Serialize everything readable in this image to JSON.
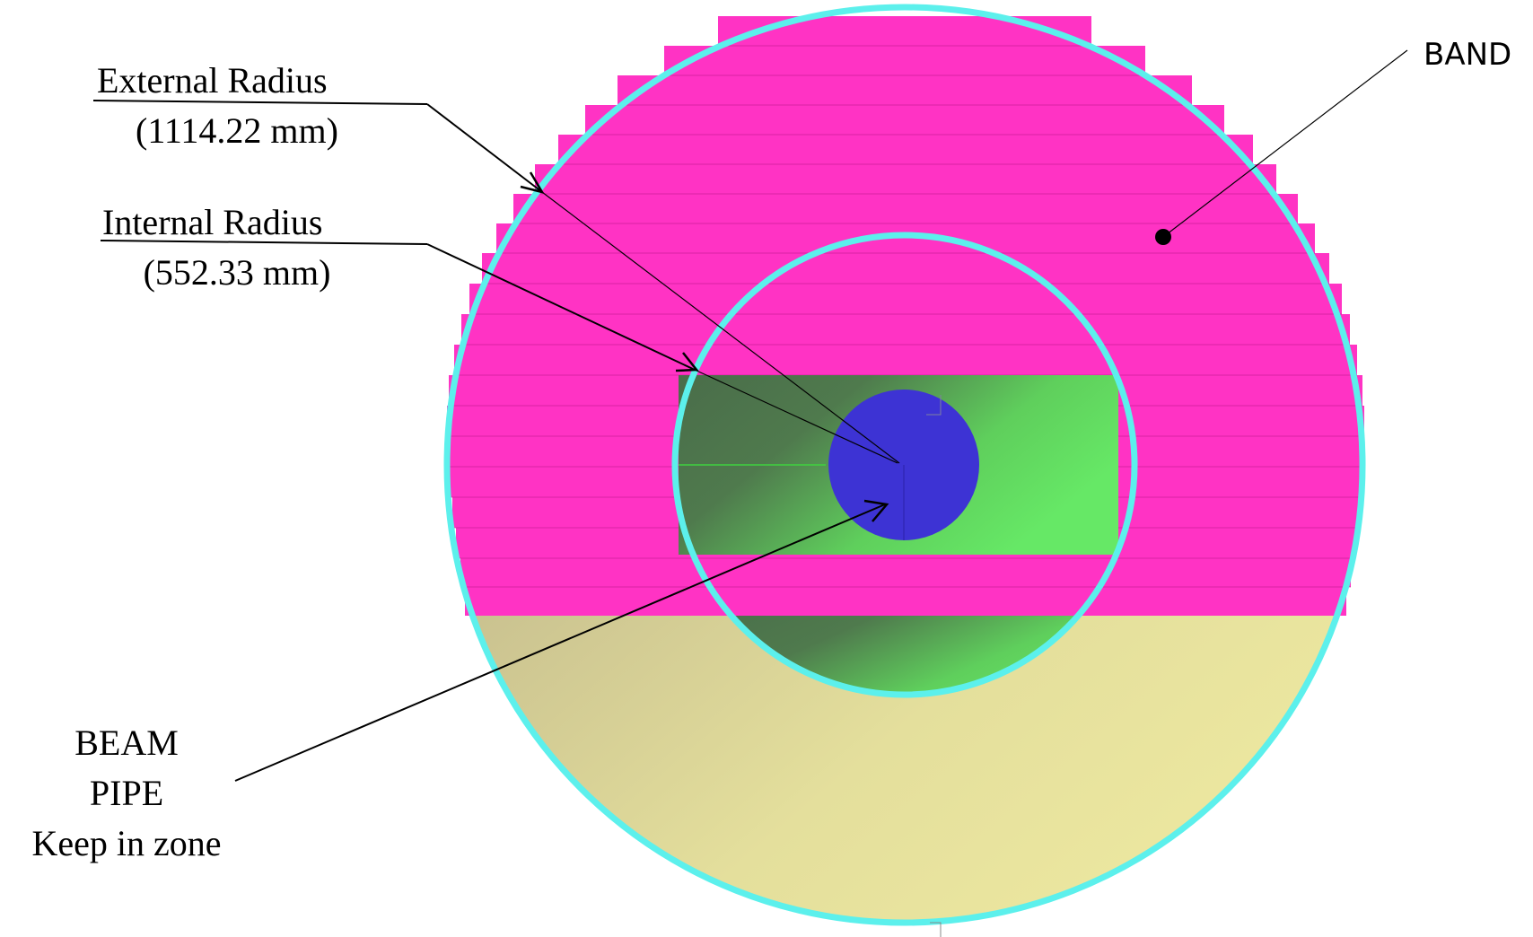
{
  "labels": {
    "external_radius_title": "External Radius",
    "external_radius_value": "(1114.22 mm)",
    "internal_radius_title": "Internal Radius",
    "internal_radius_value": "(552.33 mm)",
    "band": "BAND",
    "beam_pipe_line1": "BEAM",
    "beam_pipe_line2": "PIPE",
    "beam_pipe_line3": "Keep in zone"
  },
  "colors": {
    "band_fill": "#ff33c4",
    "ring_outline": "#5cf0ec",
    "lower_region": "#e8e59a",
    "inner_green": "#5fe05f",
    "beam_pipe": "#3d33d4",
    "leader_lines": "#000000"
  }
}
